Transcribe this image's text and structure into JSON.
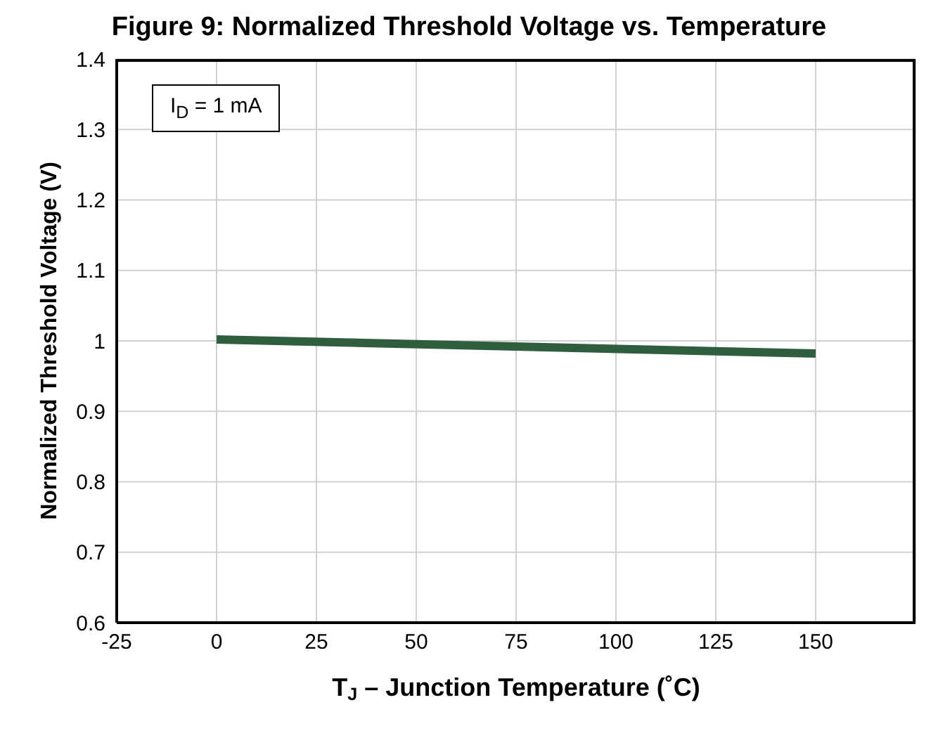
{
  "chart_data": {
    "type": "line",
    "title": "Figure 9: Normalized Threshold Voltage vs. Temperature",
    "xlabel": "T$_{J}$ – Junction Temperature (˚C)",
    "ylabel": "Normalized Threshold Voltage (V)",
    "annotations": [
      "I$_{D}$ = 1 mA"
    ],
    "x": [
      0,
      150
    ],
    "series": [
      {
        "color": "#2e5e3e",
        "values": [
          1.002,
          0.982
        ]
      }
    ],
    "xlim": [
      -25,
      175
    ],
    "xticks": [
      -25,
      0,
      25,
      50,
      75,
      100,
      125,
      150
    ],
    "ylim": [
      0.6,
      1.4
    ],
    "yticks": [
      0.6,
      0.7,
      0.8,
      0.9,
      1,
      1.1,
      1.2,
      1.3,
      1.4
    ],
    "grid": true,
    "legend": false,
    "marker": "none",
    "line_style": "solid"
  }
}
